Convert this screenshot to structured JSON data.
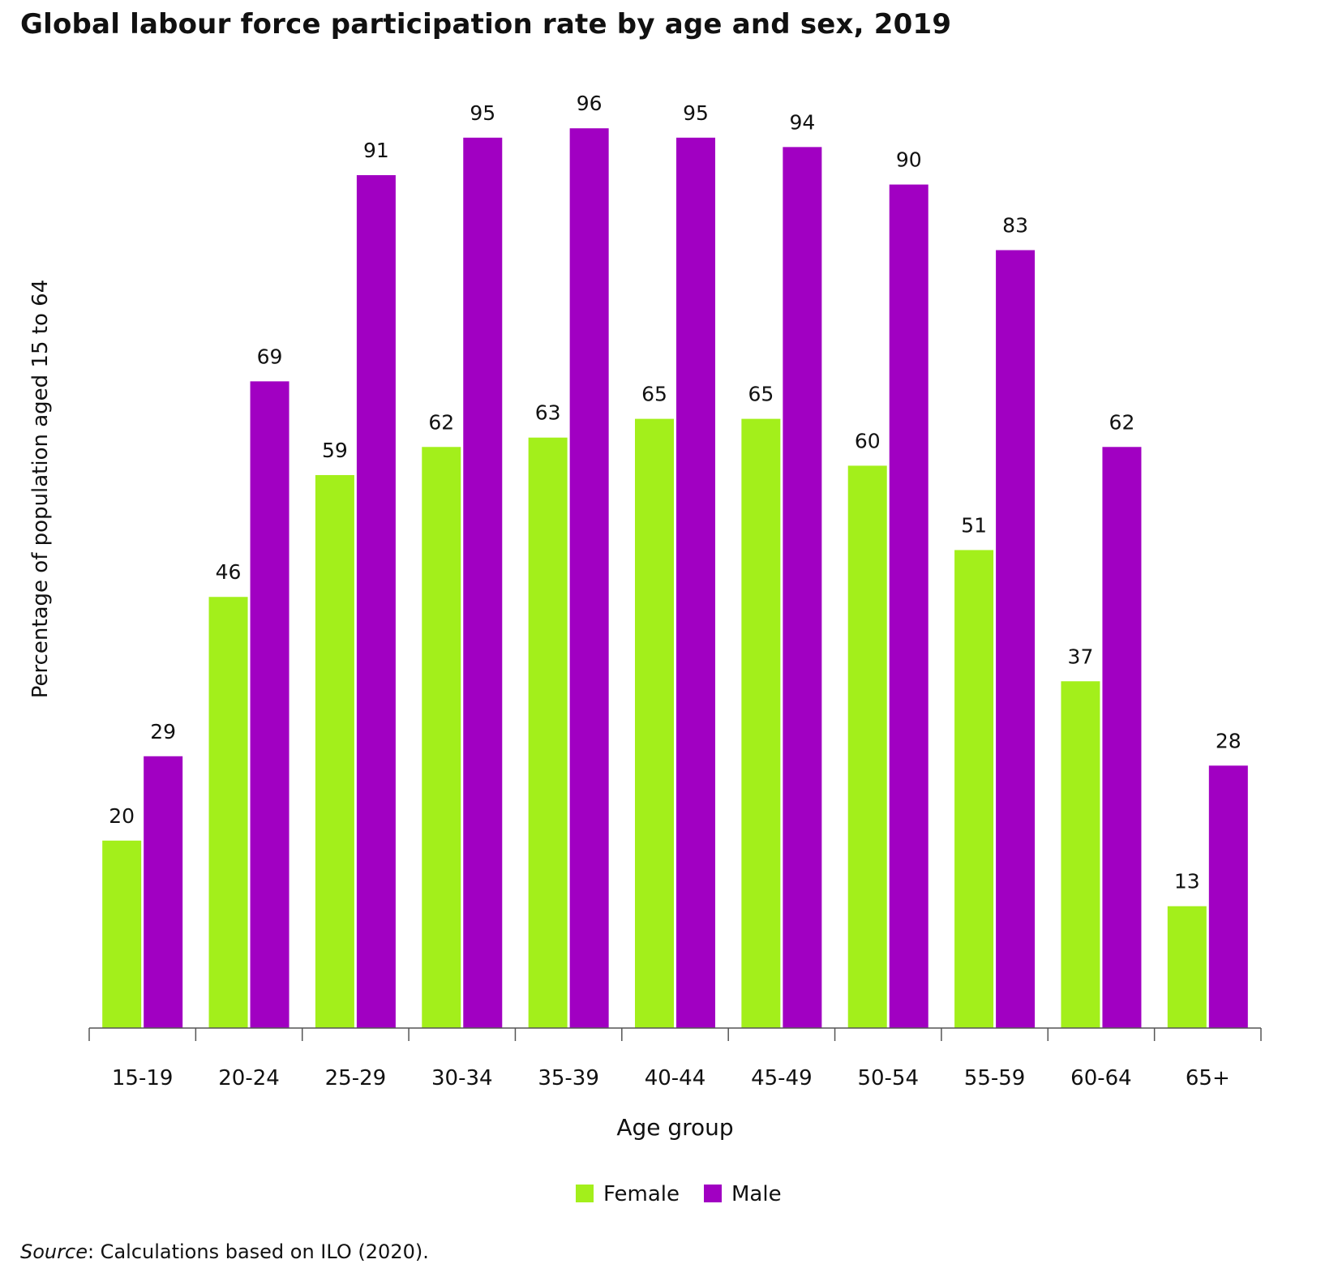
{
  "chart_data": {
    "type": "bar",
    "title": "Global labour force participation rate by age and sex, 2019",
    "xlabel": "Age group",
    "ylabel": "Percentage of population aged 15 to 64",
    "categories": [
      "15-19",
      "20-24",
      "25-29",
      "30-34",
      "35-39",
      "40-44",
      "45-49",
      "50-54",
      "55-59",
      "60-64",
      "65+"
    ],
    "series": [
      {
        "name": "Female",
        "color": "#a3ef1b",
        "values": [
          20,
          46,
          59,
          62,
          63,
          65,
          65,
          60,
          51,
          37,
          13
        ]
      },
      {
        "name": "Male",
        "color": "#a100c2",
        "values": [
          29,
          69,
          91,
          95,
          96,
          95,
          94,
          90,
          83,
          62,
          28
        ]
      }
    ],
    "ylim": [
      0,
      100
    ],
    "grid": false,
    "legend_position": "bottom-center",
    "data_labels": true
  },
  "source": {
    "label": "Source",
    "text": ": Calculations based on ILO (2020)."
  }
}
